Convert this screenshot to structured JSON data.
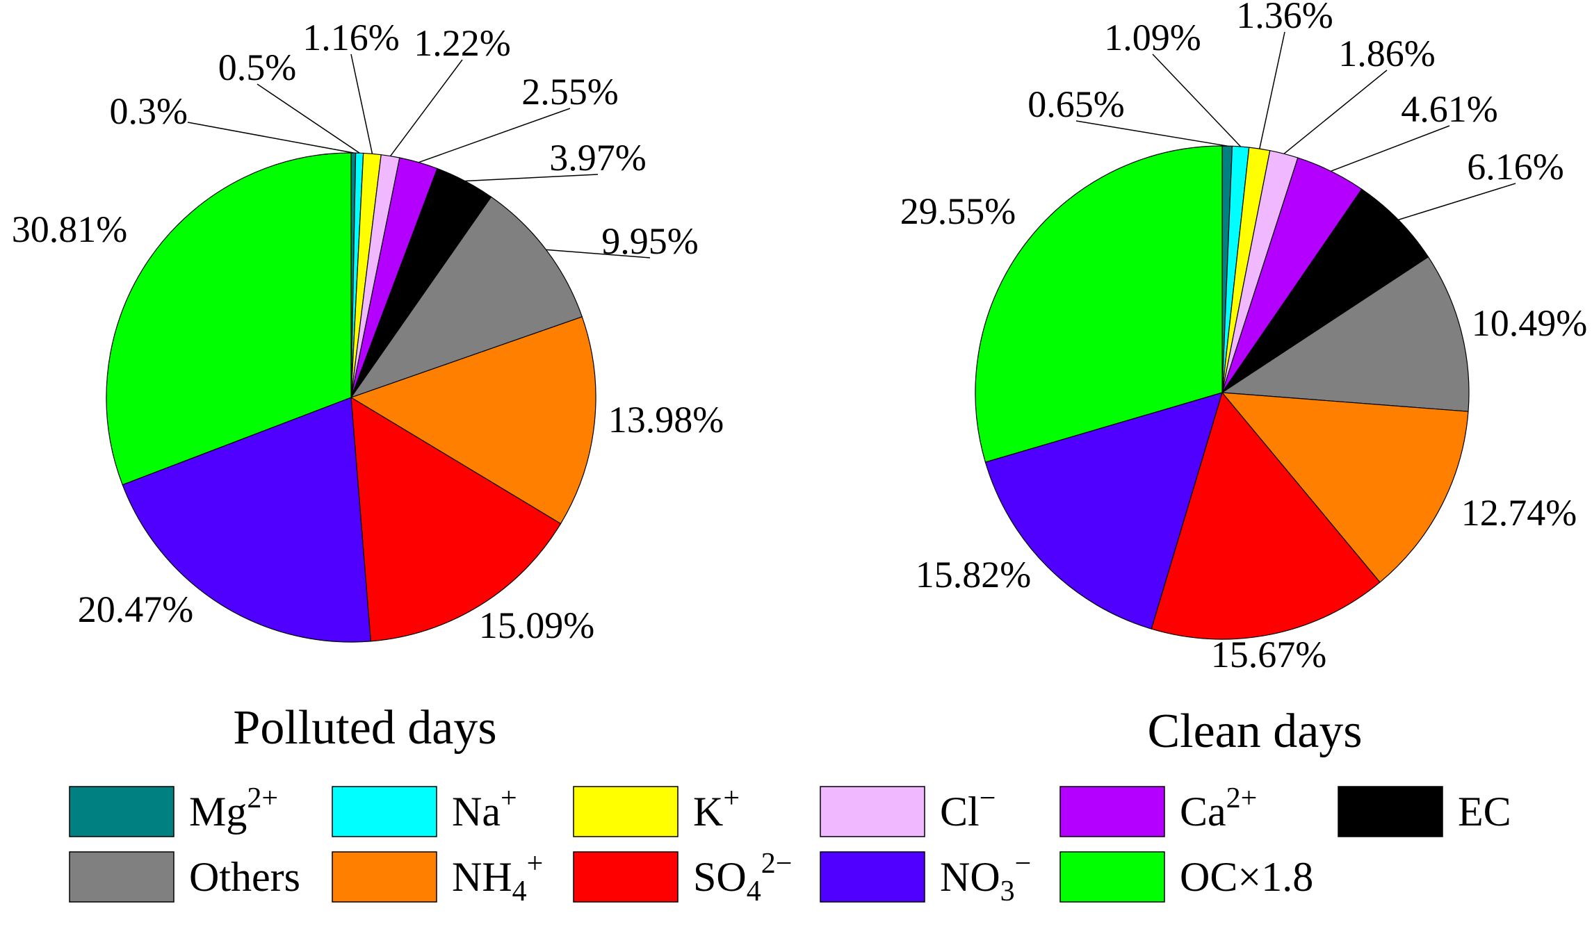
{
  "chart_data": [
    {
      "type": "pie",
      "title": "Polluted days",
      "categories": [
        "Mg2+",
        "Na+",
        "K+",
        "Cl−",
        "Ca2+",
        "EC",
        "Others",
        "NH4+",
        "SO42−",
        "NO3−",
        "OC×1.8"
      ],
      "values": [
        0.3,
        0.5,
        1.16,
        1.22,
        2.55,
        3.97,
        9.95,
        13.98,
        15.09,
        20.47,
        30.81
      ],
      "labels": [
        "0.3%",
        "0.5%",
        "1.16%",
        "1.22%",
        "2.55%",
        "3.97%",
        "9.95%",
        "13.98%",
        "15.09%",
        "20.47%",
        "30.81%"
      ],
      "start": "12 o'clock",
      "direction": "clockwise"
    },
    {
      "type": "pie",
      "title": "Clean days",
      "categories": [
        "Mg2+",
        "Na+",
        "K+",
        "Cl−",
        "Ca2+",
        "EC",
        "Others",
        "NH4+",
        "SO42−",
        "NO3−",
        "OC×1.8"
      ],
      "values": [
        0.65,
        1.09,
        1.36,
        1.86,
        4.61,
        6.16,
        10.49,
        12.74,
        15.67,
        15.82,
        29.55
      ],
      "labels": [
        "0.65%",
        "1.09%",
        "1.36%",
        "1.86%",
        "4.61%",
        "6.16%",
        "10.49%",
        "12.74%",
        "15.67%",
        "15.82%",
        "29.55%"
      ],
      "start": "12 o'clock",
      "direction": "clockwise"
    }
  ],
  "legend": {
    "placement": "bottom",
    "items": [
      {
        "base": "Mg",
        "sup": "2+",
        "sub": "",
        "color": "#008080"
      },
      {
        "base": "Na",
        "sup": "+",
        "sub": "",
        "color": "#00FFFF"
      },
      {
        "base": "K",
        "sup": "+",
        "sub": "",
        "color": "#FFFF00"
      },
      {
        "base": "Cl",
        "sup": "−",
        "sub": "",
        "color": "#F0B8FF"
      },
      {
        "base": "Ca",
        "sup": "2+",
        "sub": "",
        "color": "#B400FF"
      },
      {
        "base": "EC",
        "sup": "",
        "sub": "",
        "color": "#000000"
      },
      {
        "base": "Others",
        "sup": "",
        "sub": "",
        "color": "#808080"
      },
      {
        "base": "NH",
        "sub": "4",
        "sup": "+",
        "color": "#FF8000"
      },
      {
        "base": "SO",
        "sub": "4",
        "sup": "2−",
        "color": "#FF0000"
      },
      {
        "base": "NO",
        "sub": "3",
        "sup": "−",
        "color": "#5000FF"
      },
      {
        "base": "OC×1.8",
        "sup": "",
        "sub": "",
        "color": "#00FF00"
      }
    ]
  }
}
